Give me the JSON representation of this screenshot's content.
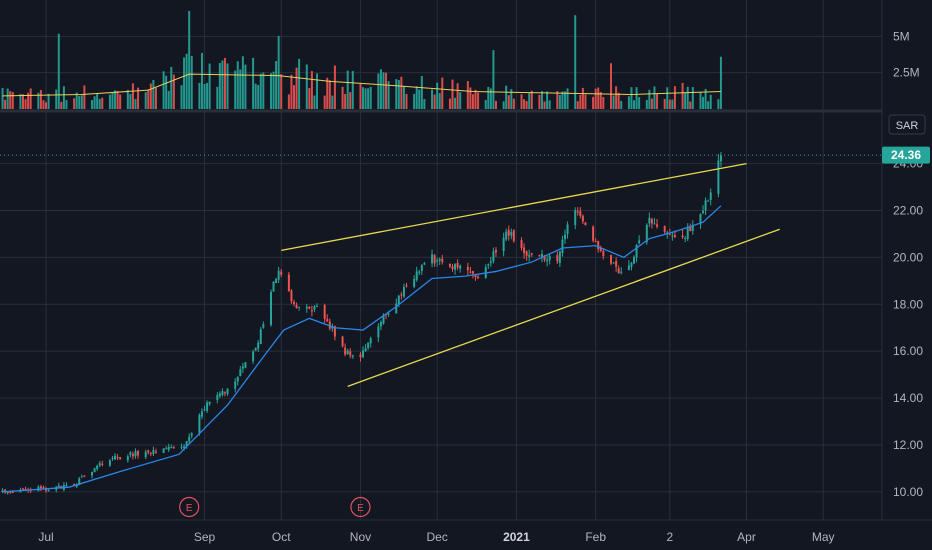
{
  "chart_data": {
    "type": "candlestick",
    "currency": "SAR",
    "last_price": "24.36",
    "y_ticks": [
      "10.00",
      "12.00",
      "14.00",
      "16.00",
      "18.00",
      "20.00",
      "22.00",
      "24.00"
    ],
    "y_range": [
      8.8,
      26.2
    ],
    "volume_ticks": [
      "2.5M",
      "5M"
    ],
    "volume_range": [
      0,
      7500000
    ],
    "x_ticks": [
      {
        "label": "Jul",
        "date": "2020-07-01",
        "bold": false
      },
      {
        "label": "Sep",
        "date": "2020-09-01",
        "bold": false
      },
      {
        "label": "Oct",
        "date": "2020-10-01",
        "bold": false
      },
      {
        "label": "Nov",
        "date": "2020-11-01",
        "bold": false
      },
      {
        "label": "Dec",
        "date": "2020-12-01",
        "bold": false
      },
      {
        "label": "2021",
        "date": "2021-01-01",
        "bold": true
      },
      {
        "label": "Feb",
        "date": "2021-02-01",
        "bold": false
      },
      {
        "label": "2",
        "date": "2021-03-02",
        "bold": false
      },
      {
        "label": "Apr",
        "date": "2021-04-01",
        "bold": false
      },
      {
        "label": "May",
        "date": "2021-05-01",
        "bold": false
      }
    ],
    "x_range": [
      "2020-06-13",
      "2021-05-24"
    ],
    "earnings_marker": "E",
    "earnings_dates": [
      "2020-08-26",
      "2020-11-01"
    ],
    "close_path": [
      [
        "2020-06-14",
        10.05
      ],
      [
        "2020-06-28",
        10.1
      ],
      [
        "2020-07-12",
        10.3
      ],
      [
        "2020-07-25",
        11.4
      ],
      [
        "2020-08-08",
        11.7
      ],
      [
        "2020-08-24",
        12.0
      ],
      [
        "2020-09-01",
        13.6
      ],
      [
        "2020-09-12",
        14.6
      ],
      [
        "2020-09-22",
        16.4
      ],
      [
        "2020-09-30",
        19.6
      ],
      [
        "2020-10-06",
        18.0
      ],
      [
        "2020-10-16",
        17.8
      ],
      [
        "2020-10-26",
        16.0
      ],
      [
        "2020-10-31",
        15.6
      ],
      [
        "2020-11-10",
        17.4
      ],
      [
        "2020-11-18",
        18.6
      ],
      [
        "2020-11-28",
        20.0
      ],
      [
        "2020-12-08",
        19.6
      ],
      [
        "2020-12-18",
        19.1
      ],
      [
        "2020-12-28",
        21.2
      ],
      [
        "2021-01-05",
        20.1
      ],
      [
        "2021-01-17",
        20.0
      ],
      [
        "2021-01-24",
        22.2
      ],
      [
        "2021-02-04",
        20.1
      ],
      [
        "2021-02-12",
        19.2
      ],
      [
        "2021-02-22",
        21.6
      ],
      [
        "2021-03-01",
        21.2
      ],
      [
        "2021-03-06",
        20.7
      ],
      [
        "2021-03-14",
        21.8
      ],
      [
        "2021-03-18",
        22.7
      ],
      [
        "2021-03-22",
        24.36
      ]
    ],
    "volume_profile": [
      [
        "2020-06-14",
        0.9
      ],
      [
        "2020-07-15",
        1.0
      ],
      [
        "2020-08-10",
        1.3
      ],
      [
        "2020-08-26",
        2.4
      ],
      [
        "2020-09-30",
        2.3
      ],
      [
        "2020-10-20",
        1.9
      ],
      [
        "2020-11-15",
        1.6
      ],
      [
        "2020-12-15",
        1.2
      ],
      [
        "2021-01-15",
        1.1
      ],
      [
        "2021-02-15",
        1.0
      ],
      [
        "2021-03-22",
        1.2
      ]
    ],
    "volume_spikes": [
      [
        "2020-07-06",
        6.9
      ],
      [
        "2020-08-26",
        9.0
      ],
      [
        "2020-08-29",
        6.4
      ],
      [
        "2020-09-30",
        6.7
      ],
      [
        "2020-10-02",
        5.0
      ],
      [
        "2020-10-08",
        4.6
      ],
      [
        "2020-11-07",
        7.0
      ],
      [
        "2020-12-23",
        5.4
      ],
      [
        "2021-01-24",
        8.6
      ],
      [
        "2021-02-07",
        4.2
      ],
      [
        "2021-03-22",
        4.8
      ]
    ],
    "moving_average": {
      "color": "#2a86e8",
      "points": [
        [
          "2020-06-14",
          10.0
        ],
        [
          "2020-07-10",
          10.2
        ],
        [
          "2020-07-31",
          10.9
        ],
        [
          "2020-08-22",
          11.6
        ],
        [
          "2020-09-10",
          13.7
        ],
        [
          "2020-09-25",
          15.9
        ],
        [
          "2020-10-02",
          16.9
        ],
        [
          "2020-10-12",
          17.4
        ],
        [
          "2020-10-22",
          17.0
        ],
        [
          "2020-11-02",
          16.9
        ],
        [
          "2020-11-15",
          17.9
        ],
        [
          "2020-11-29",
          19.1
        ],
        [
          "2020-12-12",
          19.2
        ],
        [
          "2020-12-24",
          19.4
        ],
        [
          "2021-01-07",
          19.8
        ],
        [
          "2021-01-19",
          20.4
        ],
        [
          "2021-02-01",
          20.5
        ],
        [
          "2021-02-12",
          20.0
        ],
        [
          "2021-02-22",
          20.8
        ],
        [
          "2021-03-04",
          21.1
        ],
        [
          "2021-03-15",
          21.5
        ],
        [
          "2021-03-22",
          22.2
        ]
      ]
    },
    "volume_average_color": "#e8cf5a",
    "trendlines": {
      "color": "#e8d94e",
      "upper": [
        [
          "2020-10-01",
          20.3
        ],
        [
          "2021-04-01",
          24.0
        ]
      ],
      "lower": [
        [
          "2020-10-27",
          14.5
        ],
        [
          "2021-04-14",
          21.2
        ]
      ]
    },
    "colors": {
      "up": "#26a69a",
      "down": "#ef5350",
      "background": "#131722",
      "grid": "#2a2e39",
      "earnings": "#e05260"
    }
  }
}
